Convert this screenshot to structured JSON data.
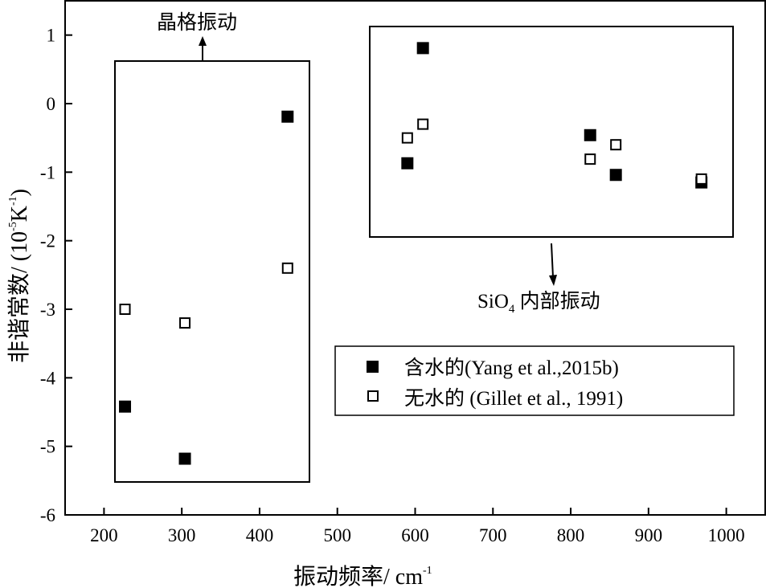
{
  "chart_data": {
    "type": "scatter",
    "xlabel": "振动频率/ cm",
    "xlabel_sup": "-1",
    "ylabel_main": "非谐常数/ (10",
    "ylabel_sup1": "-5",
    "ylabel_mid": "K",
    "ylabel_sup2": "-1",
    "ylabel_end": ")",
    "xlim": [
      150,
      1050
    ],
    "ylim": [
      -6,
      1.5
    ],
    "xticks": [
      200,
      300,
      400,
      500,
      600,
      700,
      800,
      900,
      1000
    ],
    "yticks": [
      1,
      0,
      -1,
      -2,
      -3,
      -4,
      -5,
      -6
    ],
    "grid": false,
    "legend_position": "right-middle",
    "series": [
      {
        "name": "含水的(Yang et al.,2015b)",
        "marker": "filled-square",
        "color": "#000000",
        "points": [
          {
            "x": 227,
            "y": -4.42
          },
          {
            "x": 304,
            "y": -5.18
          },
          {
            "x": 436,
            "y": -0.19
          },
          {
            "x": 590,
            "y": -0.87
          },
          {
            "x": 610,
            "y": 0.81
          },
          {
            "x": 825,
            "y": -0.46
          },
          {
            "x": 858,
            "y": -1.04
          },
          {
            "x": 968,
            "y": -1.15
          }
        ]
      },
      {
        "name": "无水的 (Gillet et al., 1991)",
        "marker": "open-square",
        "color": "#000000",
        "points": [
          {
            "x": 227,
            "y": -3.0
          },
          {
            "x": 304,
            "y": -3.2
          },
          {
            "x": 436,
            "y": -2.4
          },
          {
            "x": 590,
            "y": -0.5
          },
          {
            "x": 610,
            "y": -0.3
          },
          {
            "x": 825,
            "y": -0.81
          },
          {
            "x": 858,
            "y": -0.6
          },
          {
            "x": 968,
            "y": -1.1
          }
        ]
      }
    ],
    "annotations": {
      "lattice": "晶格振动",
      "internal_prefix": "SiO",
      "internal_sub": "4",
      "internal_suffix": " 内部振动"
    }
  }
}
